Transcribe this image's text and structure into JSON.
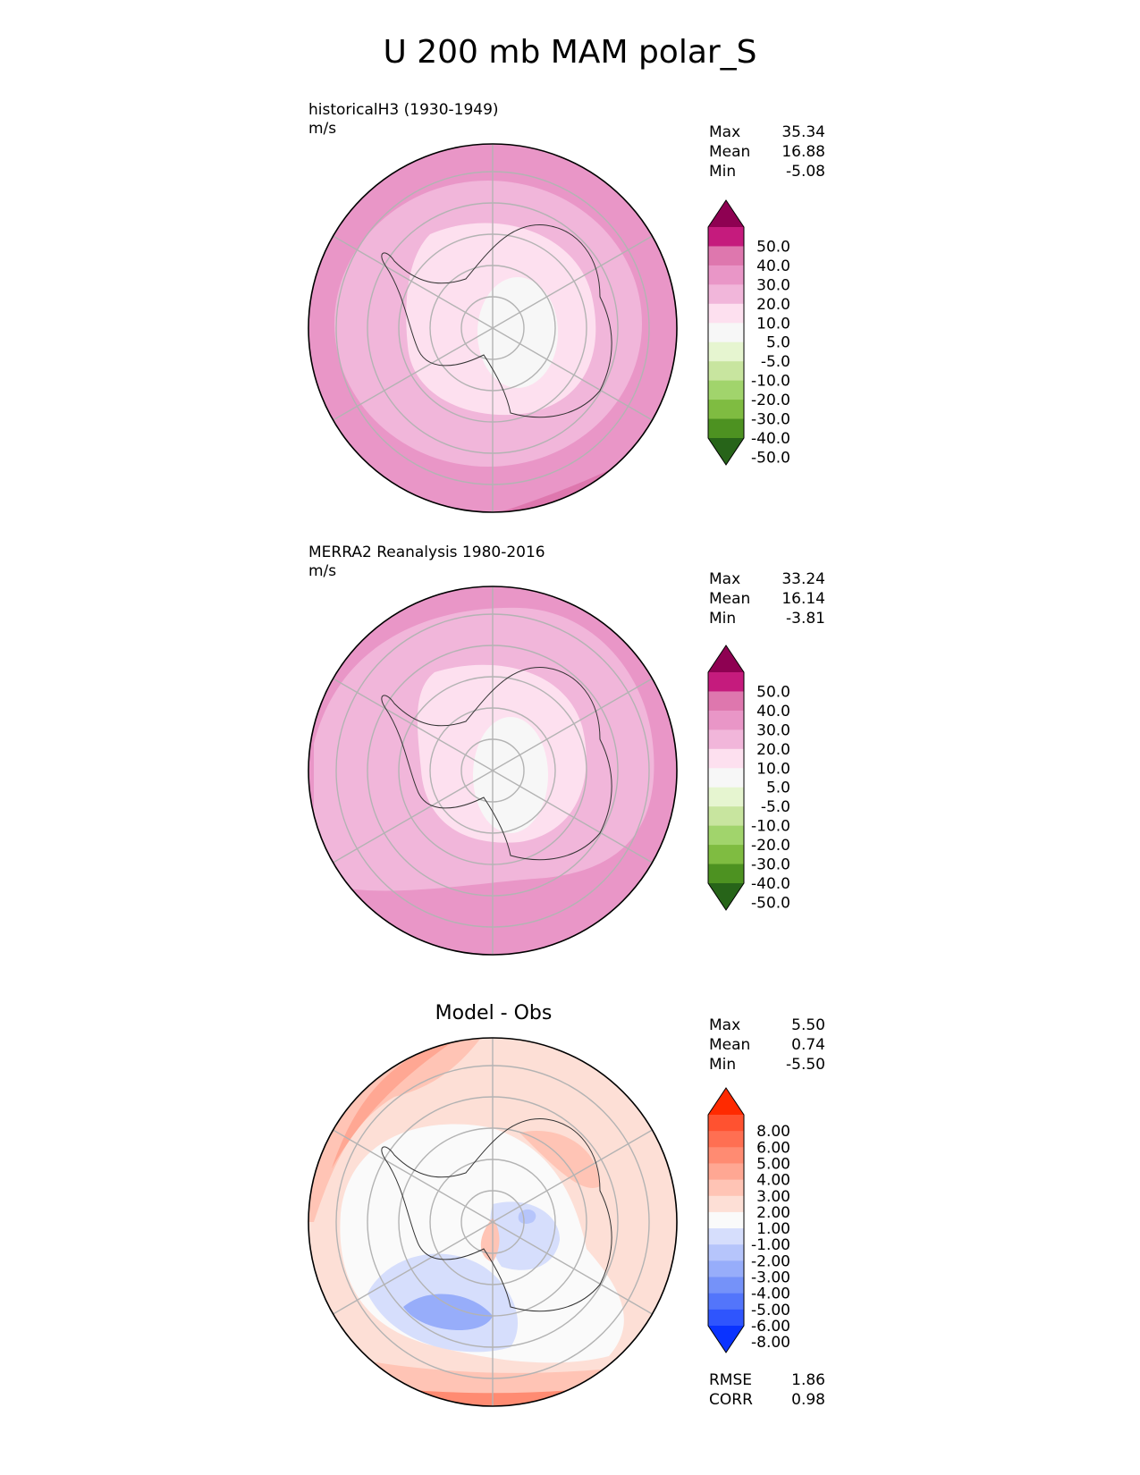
{
  "figure_title": "U 200 mb MAM polar_S",
  "panels": [
    {
      "label_line1": "historicalH3 (1930-1949)",
      "label_line2": "m/s",
      "stats": {
        "max_label": "Max",
        "max": "35.34",
        "mean_label": "Mean",
        "mean": "16.88",
        "min_label": "Min",
        "min": "-5.08"
      },
      "colorbar": {
        "ticks": [
          "50.0",
          "40.0",
          "30.0",
          "20.0",
          "10.0",
          "5.0",
          "-5.0",
          "-10.0",
          "-20.0",
          "-30.0",
          "-40.0",
          "-50.0"
        ],
        "colors": [
          "#8e0152",
          "#c51b7d",
          "#de77ae",
          "#e996c7",
          "#f1b6da",
          "#fde0ef",
          "#f7f7f7",
          "#e6f5d0",
          "#c8e59f",
          "#a1d46c",
          "#7fbc41",
          "#4d9221",
          "#276419"
        ]
      }
    },
    {
      "label_line1": "MERRA2 Reanalysis 1980-2016",
      "label_line2": "m/s",
      "stats": {
        "max_label": "Max",
        "max": "33.24",
        "mean_label": "Mean",
        "mean": "16.14",
        "min_label": "Min",
        "min": "-3.81"
      },
      "colorbar": {
        "ticks": [
          "50.0",
          "40.0",
          "30.0",
          "20.0",
          "10.0",
          "5.0",
          "-5.0",
          "-10.0",
          "-20.0",
          "-30.0",
          "-40.0",
          "-50.0"
        ],
        "colors": [
          "#8e0152",
          "#c51b7d",
          "#de77ae",
          "#e996c7",
          "#f1b6da",
          "#fde0ef",
          "#f7f7f7",
          "#e6f5d0",
          "#c8e59f",
          "#a1d46c",
          "#7fbc41",
          "#4d9221",
          "#276419"
        ]
      }
    },
    {
      "title": "Model - Obs",
      "stats": {
        "max_label": "Max",
        "max": "5.50",
        "mean_label": "Mean",
        "mean": "0.74",
        "min_label": "Min",
        "min": "-5.50"
      },
      "colorbar": {
        "ticks": [
          "8.00",
          "6.00",
          "5.00",
          "4.00",
          "3.00",
          "2.00",
          "1.00",
          "-1.00",
          "-2.00",
          "-3.00",
          "-4.00",
          "-5.00",
          "-6.00",
          "-8.00"
        ],
        "colors": [
          "#ff2a00",
          "#ff5230",
          "#ff6f52",
          "#ff8b72",
          "#ffa793",
          "#ffc4b5",
          "#fddfd6",
          "#fafafa",
          "#d6defc",
          "#b6c5fb",
          "#97adfa",
          "#7592f9",
          "#5375fb",
          "#2f55fd",
          "#0a33ff"
        ]
      },
      "footer": {
        "rmse_label": "RMSE",
        "rmse": "1.86",
        "corr_label": "CORR",
        "corr": "0.98"
      }
    }
  ]
}
